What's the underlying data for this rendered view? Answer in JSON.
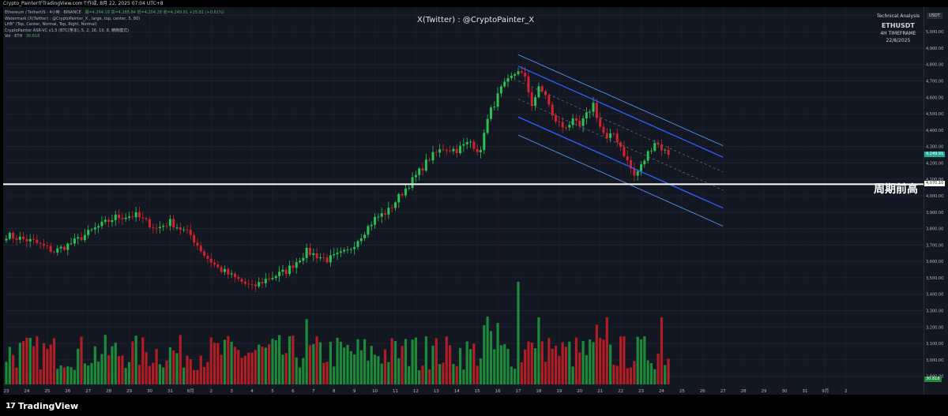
{
  "header": {
    "top_line": "Crypto_PainterがTradingView.comで作成, 8月 22, 2025 07:04 UTC+8"
  },
  "legend": {
    "line1": "Ethereum / TetherUS · 4小時 · BINANCE",
    "ohlc": "開=4,264.10 高=4,265.84 低=4,204.28 收=4,249.91 +25.81 (+0.61%)",
    "line2": "Watermark (X(Twitter) : @CryptoPainter_X , large, top, center, 5, 80)",
    "line3": "LHB\" (Top, Center, Normal, Top, Right, Normal)",
    "line4": "CryptoPainter ASR-VC v1.5 (BTC(幣本), 5, 2, 16, 10, 8, 精簡模式)",
    "vol_label": "Vol · ETH",
    "vol_value": "30.818"
  },
  "watermark": "X(Twitter) : @CryptoPainter_X",
  "ta_box": {
    "title": "Technical Analysis",
    "symbol": "ETHUSDT",
    "timeframe": "4H TIMEFRAME",
    "date": "22/8/2025"
  },
  "cycle_high_label": "周期前高",
  "axis": {
    "currency": "USDT",
    "current_price": "4,249.91",
    "current_price_sub": "",
    "level_price": "4,070.10",
    "vol_badge": "30.818"
  },
  "footer": {
    "brand": "TradingView"
  },
  "colors": {
    "up": "#089981",
    "down": "#f23645",
    "vol_up": "#1d8a3a",
    "vol_down": "#b01d24",
    "channel": "#2962ff",
    "channel_light": "#5aa0ff",
    "level": "#ffffff",
    "badge_up": "#22ab94"
  },
  "chart_data": {
    "type": "candlestick",
    "symbol": "ETHUSDT",
    "interval": "4H",
    "y_range": [
      2850,
      5150
    ],
    "y_ticks": [
      5100,
      5000,
      4900,
      4800,
      4700,
      4600,
      4500,
      4400,
      4300,
      4200,
      4100,
      4000,
      3900,
      3800,
      3700,
      3600,
      3500,
      3400,
      3300,
      3200,
      3100,
      3000,
      2900
    ],
    "y_tick_labels": [
      "5,100.00",
      "5,000.00",
      "4,900.00",
      "4,800.00",
      "4,700.00",
      "4,600.00",
      "4,500.00",
      "4,400.00",
      "4,300.00",
      "4,200.00",
      "4,100.00",
      "4,000.00",
      "3,900.00",
      "3,800.00",
      "3,700.00",
      "3,600.00",
      "3,500.00",
      "3,400.00",
      "3,300.00",
      "3,200.00",
      "3,100.00",
      "3,000.00",
      "2,900.00"
    ],
    "x_labels": [
      "23",
      "24",
      "25",
      "26",
      "27",
      "28",
      "29",
      "30",
      "31",
      "8月",
      "2",
      "3",
      "4",
      "5",
      "6",
      "7",
      "8",
      "9",
      "10",
      "11",
      "12",
      "13",
      "14",
      "15",
      "16",
      "17",
      "18",
      "19",
      "20",
      "21",
      "22",
      "23",
      "24",
      "25",
      "26",
      "27",
      "28",
      "29",
      "30",
      "31",
      "9月",
      "2"
    ],
    "x_label_bars": [
      0,
      6,
      12,
      18,
      24,
      30,
      36,
      42,
      48,
      54,
      60,
      66,
      72,
      78,
      84,
      90,
      96,
      102,
      108,
      114,
      120,
      126,
      132,
      138,
      144,
      150,
      156,
      162,
      168,
      174,
      180,
      186,
      192,
      198,
      204,
      210,
      216,
      222,
      228,
      234,
      240,
      246
    ],
    "candles_per_day": 6,
    "first_candle_day": "7/22",
    "close_anchors": [
      [
        0,
        3760
      ],
      [
        8,
        3720
      ],
      [
        14,
        3660
      ],
      [
        20,
        3720
      ],
      [
        26,
        3800
      ],
      [
        32,
        3870
      ],
      [
        38,
        3880
      ],
      [
        44,
        3800
      ],
      [
        48,
        3840
      ],
      [
        54,
        3760
      ],
      [
        58,
        3640
      ],
      [
        62,
        3560
      ],
      [
        66,
        3510
      ],
      [
        72,
        3440
      ],
      [
        76,
        3490
      ],
      [
        82,
        3540
      ],
      [
        88,
        3660
      ],
      [
        94,
        3610
      ],
      [
        100,
        3660
      ],
      [
        104,
        3760
      ],
      [
        108,
        3860
      ],
      [
        112,
        3910
      ],
      [
        116,
        4020
      ],
      [
        120,
        4120
      ],
      [
        124,
        4230
      ],
      [
        128,
        4290
      ],
      [
        132,
        4280
      ],
      [
        136,
        4330
      ],
      [
        139,
        4260
      ],
      [
        140,
        4400
      ],
      [
        142,
        4520
      ],
      [
        145,
        4650
      ],
      [
        148,
        4720
      ],
      [
        150,
        4770
      ],
      [
        152,
        4710
      ],
      [
        154,
        4560
      ],
      [
        156,
        4650
      ],
      [
        158,
        4620
      ],
      [
        160,
        4480
      ],
      [
        163,
        4420
      ],
      [
        166,
        4450
      ],
      [
        168,
        4420
      ],
      [
        170,
        4490
      ],
      [
        172,
        4560
      ],
      [
        174,
        4420
      ],
      [
        176,
        4340
      ],
      [
        178,
        4380
      ],
      [
        180,
        4300
      ],
      [
        182,
        4210
      ],
      [
        184,
        4120
      ],
      [
        186,
        4180
      ],
      [
        188,
        4260
      ],
      [
        190,
        4330
      ],
      [
        192,
        4290
      ],
      [
        194,
        4250
      ]
    ],
    "last_close": 4249.91,
    "level_line": 4070.1,
    "channel": {
      "upper_outer": [
        [
          150,
          4860
        ],
        [
          210,
          4305
        ]
      ],
      "upper": [
        [
          150,
          4790
        ],
        [
          210,
          4235
        ]
      ],
      "mid_a": [
        [
          150,
          4700
        ],
        [
          210,
          4145
        ]
      ],
      "mid_b": [
        [
          150,
          4590
        ],
        [
          210,
          4035
        ]
      ],
      "lower": [
        [
          150,
          4480
        ],
        [
          210,
          3925
        ]
      ],
      "lower_outer": [
        [
          150,
          4370
        ],
        [
          210,
          3815
        ]
      ]
    },
    "volume_spike_bars": [
      150,
      156,
      176,
      192
    ],
    "n_candles": 195
  }
}
